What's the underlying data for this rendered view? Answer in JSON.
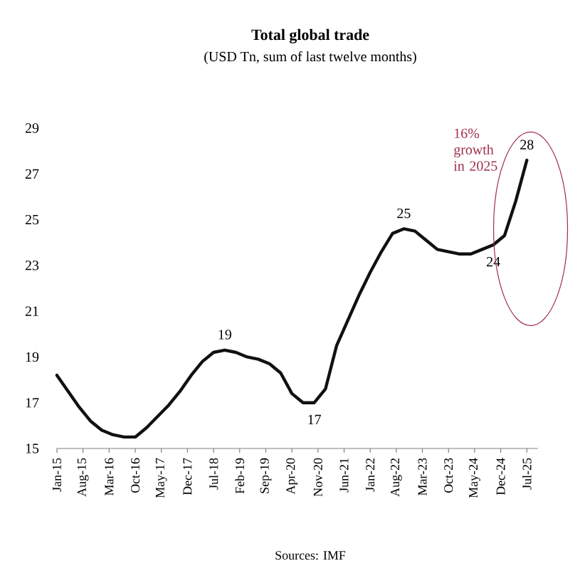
{
  "chart_data": {
    "type": "line",
    "title": "Total global trade",
    "subtitle": "(USD Tn, sum of last twelve months)",
    "x": [
      "2015-01",
      "2015-04",
      "2015-07",
      "2015-10",
      "2016-01",
      "2016-04",
      "2016-07",
      "2016-10",
      "2017-01",
      "2017-04",
      "2017-07",
      "2017-10",
      "2018-01",
      "2018-04",
      "2018-07",
      "2018-10",
      "2019-01",
      "2019-04",
      "2019-07",
      "2019-10",
      "2020-01",
      "2020-04",
      "2020-07",
      "2020-10",
      "2021-01",
      "2021-04",
      "2021-07",
      "2021-10",
      "2022-01",
      "2022-04",
      "2022-07",
      "2022-10",
      "2023-01",
      "2023-04",
      "2023-07",
      "2023-10",
      "2024-01",
      "2024-04",
      "2024-07",
      "2024-10",
      "2025-01",
      "2025-04",
      "2025-07"
    ],
    "values": [
      18.2,
      17.5,
      16.8,
      16.2,
      15.8,
      15.6,
      15.5,
      15.5,
      15.9,
      16.4,
      16.9,
      17.5,
      18.2,
      18.8,
      19.2,
      19.3,
      19.2,
      19.0,
      18.9,
      18.7,
      18.3,
      17.4,
      17.0,
      17.0,
      17.6,
      19.5,
      20.6,
      21.7,
      22.7,
      23.6,
      24.4,
      24.6,
      24.5,
      24.1,
      23.7,
      23.6,
      23.5,
      23.5,
      23.7,
      23.9,
      24.3,
      25.8,
      27.6
    ],
    "color": "#111111",
    "xlim": [
      "2015-01",
      "2025-10"
    ],
    "ylim": [
      15,
      29
    ],
    "xticks": [
      {
        "value": "2015-01",
        "label": "Jan-15"
      },
      {
        "value": "2015-08",
        "label": "Aug-15"
      },
      {
        "value": "2016-03",
        "label": "Mar-16"
      },
      {
        "value": "2016-10",
        "label": "Oct-16"
      },
      {
        "value": "2017-05",
        "label": "May-17"
      },
      {
        "value": "2017-12",
        "label": "Dec-17"
      },
      {
        "value": "2018-07",
        "label": "Jul-18"
      },
      {
        "value": "2019-02",
        "label": "Feb-19"
      },
      {
        "value": "2019-09",
        "label": "Sep-19"
      },
      {
        "value": "2020-04",
        "label": "Apr-20"
      },
      {
        "value": "2020-11",
        "label": "Nov-20"
      },
      {
        "value": "2021-06",
        "label": "Jun-21"
      },
      {
        "value": "2022-01",
        "label": "Jan-22"
      },
      {
        "value": "2022-08",
        "label": "Aug-22"
      },
      {
        "value": "2023-03",
        "label": "Mar-23"
      },
      {
        "value": "2023-10",
        "label": "Oct-23"
      },
      {
        "value": "2024-05",
        "label": "May-24"
      },
      {
        "value": "2024-12",
        "label": "Dec-24"
      },
      {
        "value": "2025-07",
        "label": "Jul-25"
      }
    ],
    "yticks": [
      15,
      17,
      19,
      21,
      23,
      25,
      27,
      29
    ],
    "annotations": [
      {
        "text": "19",
        "x": "2018-10",
        "y": 19.3
      },
      {
        "text": "17",
        "x": "2020-10",
        "y": 17.0
      },
      {
        "text": "25",
        "x": "2022-10",
        "y": 24.6
      },
      {
        "text": "24",
        "x": "2024-10",
        "y": 23.9
      },
      {
        "text": "28",
        "x": "2025-07",
        "y": 27.6
      },
      "16% growth in 2025",
      "Sources: IMF"
    ]
  }
}
